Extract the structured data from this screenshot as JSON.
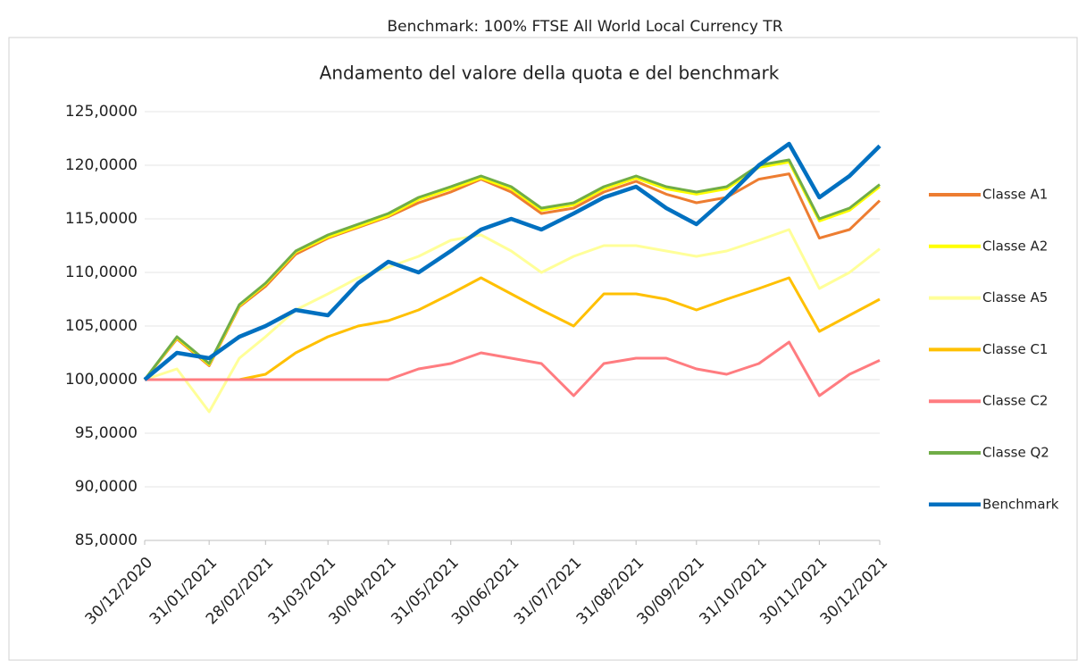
{
  "chart_data": {
    "type": "line",
    "header": "Benchmark: 100% FTSE All World Local Currency TR",
    "title": "Andamento del valore della quota e del benchmark",
    "x": [
      "30/12/2020",
      "15/01/2021",
      "31/01/2021",
      "15/02/2021",
      "28/02/2021",
      "15/03/2021",
      "31/03/2021",
      "15/04/2021",
      "30/04/2021",
      "15/05/2021",
      "31/05/2021",
      "15/06/2021",
      "30/06/2021",
      "15/07/2021",
      "31/07/2021",
      "15/08/2021",
      "31/08/2021",
      "15/09/2021",
      "30/09/2021",
      "15/10/2021",
      "31/10/2021",
      "15/11/2021",
      "30/11/2021",
      "15/12/2021",
      "30/12/2021"
    ],
    "xlim": [
      "30/12/2020",
      "30/12/2021"
    ],
    "xticks": [
      "30/12/2020",
      "31/01/2021",
      "28/02/2021",
      "31/03/2021",
      "30/04/2021",
      "31/05/2021",
      "30/06/2021",
      "31/07/2021",
      "31/08/2021",
      "30/09/2021",
      "31/10/2021",
      "30/11/2021",
      "30/12/2021"
    ],
    "ylim": [
      85,
      125
    ],
    "yticks": [
      {
        "value": 85,
        "label": "85,0000"
      },
      {
        "value": 90,
        "label": "90,0000"
      },
      {
        "value": 95,
        "label": "95,0000"
      },
      {
        "value": 100,
        "label": "100,0000"
      },
      {
        "value": 105,
        "label": "105,0000"
      },
      {
        "value": 110,
        "label": "110,0000"
      },
      {
        "value": 115,
        "label": "115,0000"
      },
      {
        "value": 120,
        "label": "120,0000"
      },
      {
        "value": 125,
        "label": "125,0000"
      }
    ],
    "grid": true,
    "legend": "right",
    "series": [
      {
        "name": "Classe A1",
        "color": "#ed7d31",
        "values": [
          100,
          103.8,
          101.3,
          106.8,
          108.7,
          111.7,
          113.2,
          114.2,
          115.2,
          116.5,
          117.5,
          118.7,
          117.5,
          115.5,
          116,
          117.5,
          118.5,
          117.3,
          116.5,
          117,
          118.7,
          119.2,
          113.2,
          114,
          116.7
        ]
      },
      {
        "name": "Classe A2",
        "color": "#ffff00",
        "values": [
          100,
          103.9,
          101.4,
          106.9,
          108.9,
          111.9,
          113.3,
          114.3,
          115.3,
          116.8,
          117.8,
          118.8,
          117.8,
          115.8,
          116.3,
          117.8,
          118.8,
          117.8,
          117.3,
          117.8,
          119.8,
          120.3,
          114.8,
          115.8,
          118
        ]
      },
      {
        "name": "Classe A5",
        "color": "#ffff99",
        "values": [
          100,
          101,
          97,
          102,
          104,
          106.5,
          108,
          109.5,
          110.5,
          111.5,
          113,
          113.5,
          112,
          110,
          111.5,
          112.5,
          112.5,
          112,
          111.5,
          112,
          113,
          114,
          108.5,
          110,
          112.2
        ]
      },
      {
        "name": "Classe C1",
        "color": "#ffc000",
        "values": [
          100,
          100,
          100,
          100,
          100.5,
          102.5,
          104,
          105,
          105.5,
          106.5,
          108,
          109.5,
          108,
          106.5,
          105,
          108,
          108,
          107.5,
          106.5,
          107.5,
          108.5,
          109.5,
          104.5,
          106,
          107.5
        ]
      },
      {
        "name": "Classe C2",
        "color": "#ff7c80",
        "values": [
          100,
          100,
          100,
          100,
          100,
          100,
          100,
          100,
          100,
          101,
          101.5,
          102.5,
          102,
          101.5,
          98.5,
          101.5,
          102,
          102,
          101,
          100.5,
          101.5,
          103.5,
          98.5,
          100.5,
          101.8
        ]
      },
      {
        "name": "Classe Q2",
        "color": "#70ad47",
        "values": [
          100,
          104,
          101.5,
          107,
          109,
          112,
          113.5,
          114.5,
          115.5,
          117,
          118,
          119,
          118,
          116,
          116.5,
          118,
          119,
          118,
          117.5,
          118,
          120,
          120.5,
          115,
          116,
          118.2
        ]
      },
      {
        "name": "Benchmark",
        "color": "#0070c0",
        "values": [
          100,
          102.5,
          102,
          104,
          105,
          106.5,
          106,
          109,
          111,
          110,
          112,
          114,
          115,
          114,
          115.5,
          117,
          118,
          116,
          114.5,
          117,
          120,
          122,
          117,
          119,
          121.8
        ]
      }
    ]
  }
}
